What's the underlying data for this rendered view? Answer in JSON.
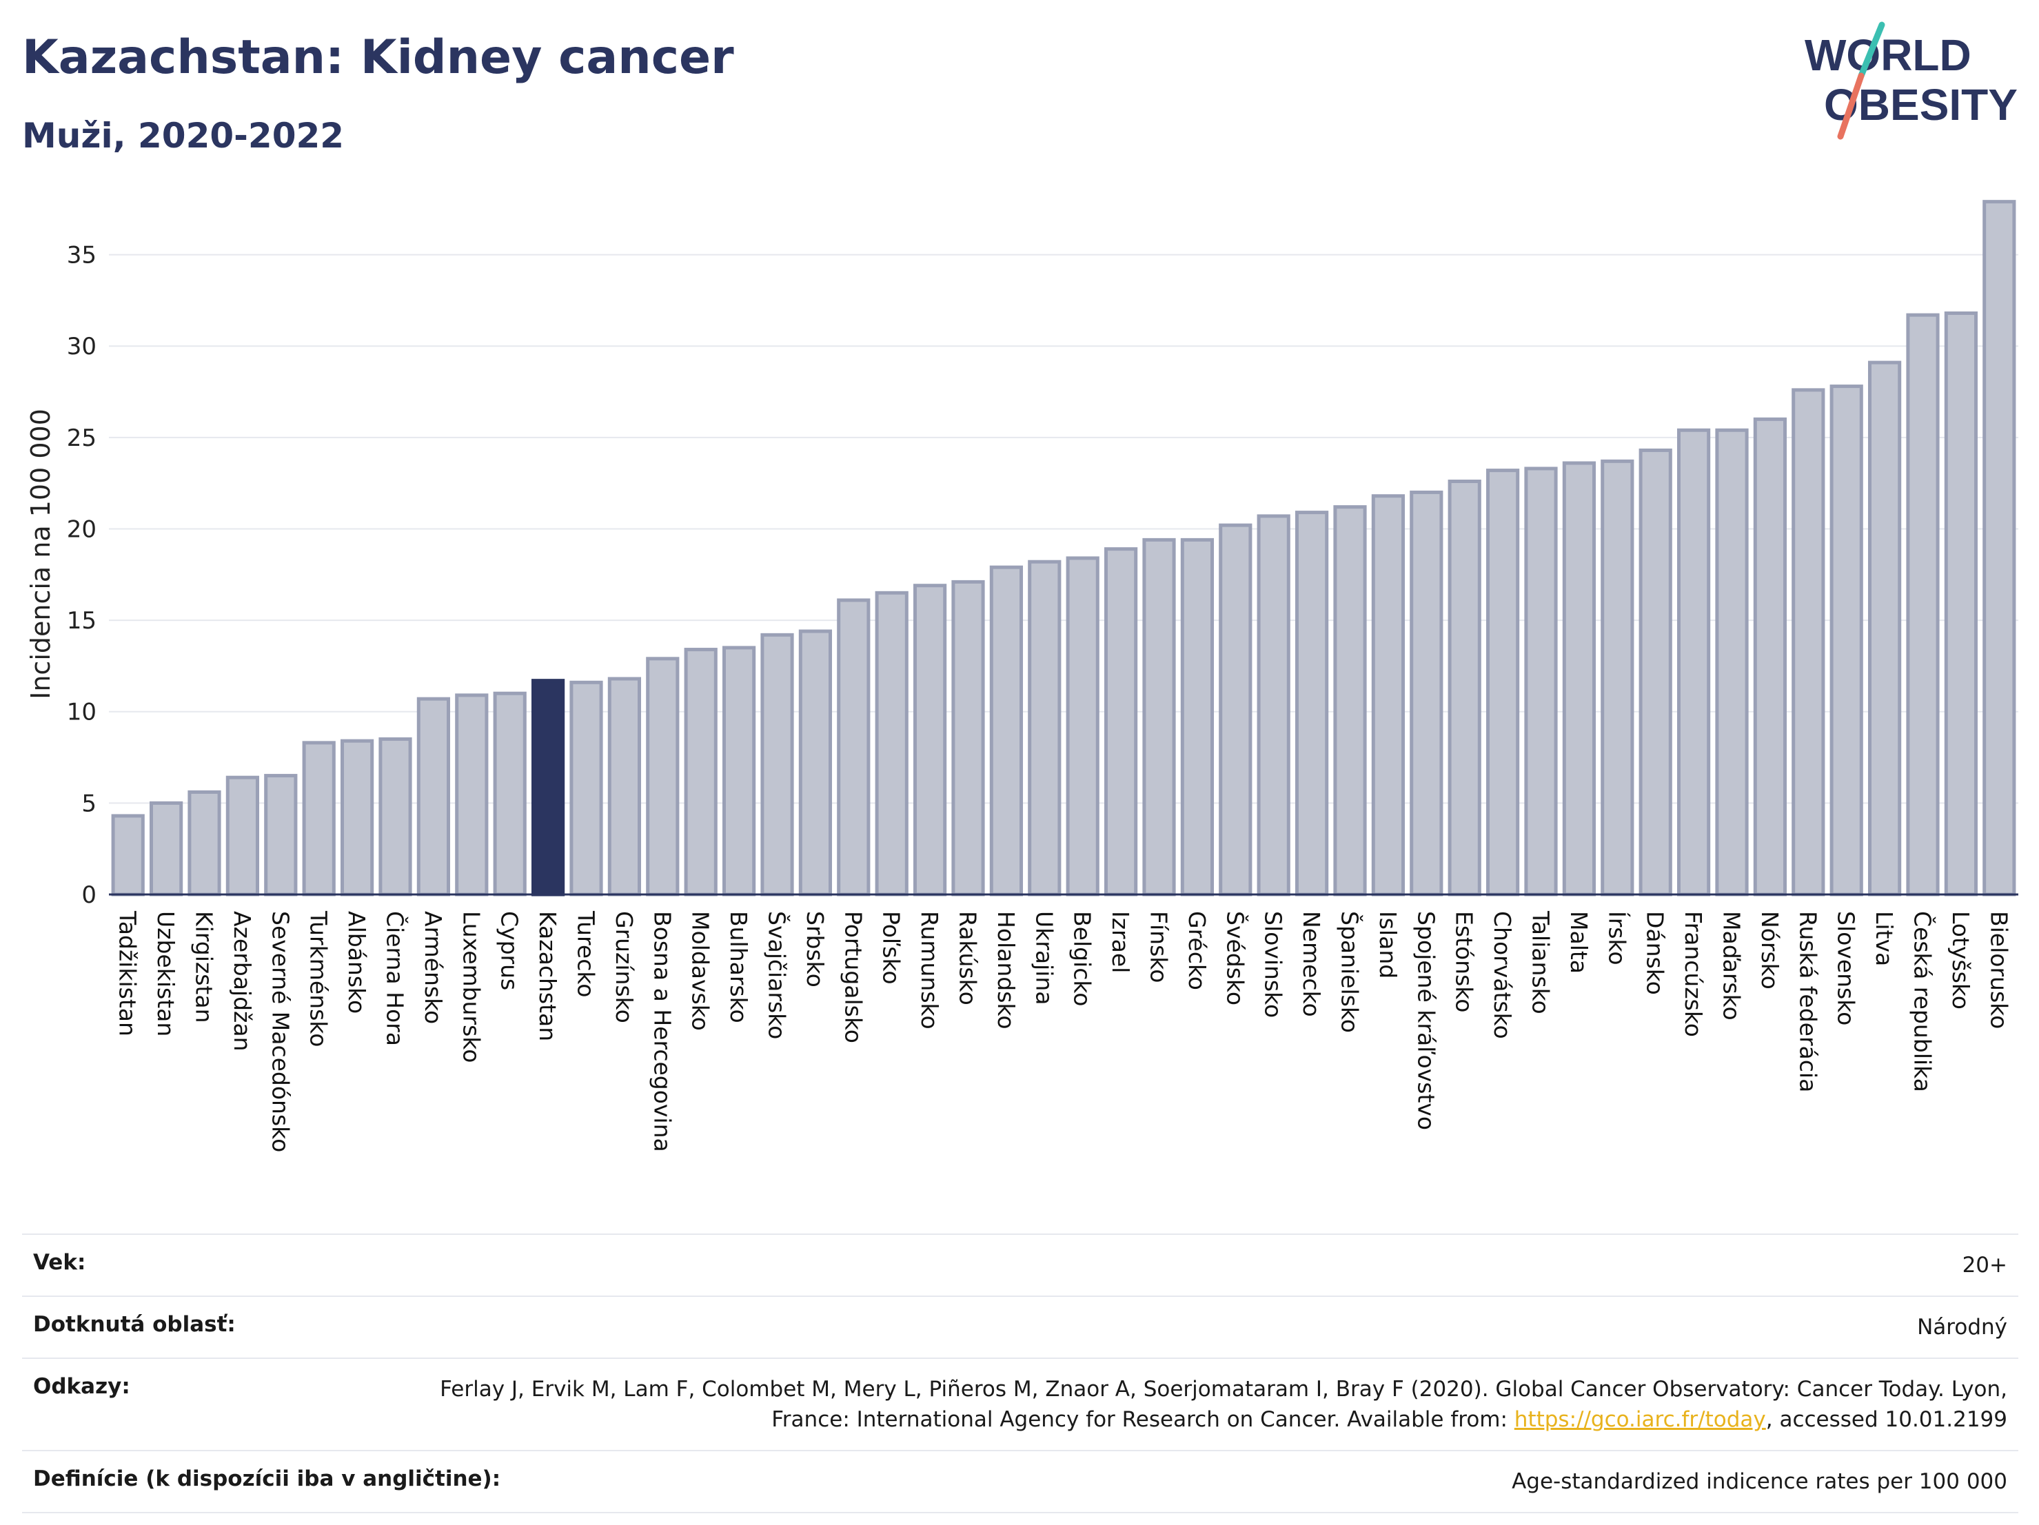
{
  "header": {
    "title": "Kazachstan: Kidney cancer",
    "subtitle": "Muži, 2020-2022"
  },
  "logo": {
    "line1": "WORLD",
    "line2": "OBESITY"
  },
  "colors": {
    "bar": "#c0c4d0",
    "bar_stroke": "#9aa0b6",
    "highlight": "#2b3560",
    "title": "#2b3560",
    "logo_slash_top": "#3bbfb1",
    "logo_slash_bottom": "#e8735f"
  },
  "chart_data": {
    "type": "bar",
    "ylabel": "Incidencia na 100 000",
    "ylim": [
      0,
      38
    ],
    "yticks": [
      0,
      5,
      10,
      15,
      20,
      25,
      30,
      35
    ],
    "grid": true,
    "highlight": "Kazachstan",
    "categories": [
      "Tadžikistan",
      "Uzbekistan",
      "Kirgizstan",
      "Azerbajdžan",
      "Severné Macedónsko",
      "Turkménsko",
      "Albánsko",
      "Čierna Hora",
      "Arménsko",
      "Luxembursko",
      "Cyprus",
      "Kazachstan",
      "Turecko",
      "Gruzínsko",
      "Bosna a Hercegovina",
      "Moldavsko",
      "Bulharsko",
      "Švajčiarsko",
      "Srbsko",
      "Portugalsko",
      "Poľsko",
      "Rumunsko",
      "Rakúsko",
      "Holandsko",
      "Ukrajina",
      "Belgicko",
      "Izrael",
      "Fínsko",
      "Grécko",
      "Švédsko",
      "Slovinsko",
      "Nemecko",
      "Španielsko",
      "Island",
      "Spojené kráľovstvo",
      "Estónsko",
      "Chorvátsko",
      "Taliansko",
      "Malta",
      "Írsko",
      "Dánsko",
      "Francúzsko",
      "Maďarsko",
      "Nórsko",
      "Ruská federácia",
      "Slovensko",
      "Litva",
      "Česká republika",
      "Lotyšsko",
      "Bielorusko"
    ],
    "values": [
      4.3,
      5.0,
      5.6,
      6.4,
      6.5,
      8.3,
      8.4,
      8.5,
      10.7,
      10.9,
      11.0,
      11.7,
      11.6,
      11.8,
      12.9,
      13.4,
      13.5,
      14.2,
      14.4,
      16.1,
      16.5,
      16.9,
      17.1,
      17.9,
      18.2,
      18.4,
      18.9,
      19.4,
      19.4,
      20.2,
      20.7,
      20.9,
      21.2,
      21.8,
      22.0,
      22.6,
      23.2,
      23.3,
      23.6,
      23.7,
      24.3,
      25.4,
      25.4,
      26.0,
      27.6,
      27.8,
      29.1,
      31.7,
      31.8,
      37.9
    ]
  },
  "info": {
    "age_label": "Vek:",
    "age_value": "20+",
    "area_label": "Dotknutá oblasť:",
    "area_value": "Národný",
    "refs_label": "Odkazy:",
    "refs_text_1": "Ferlay J, Ervik M, Lam F, Colombet M, Mery L, Piñeros M, Znaor A, Soerjomataram I, Bray F (2020). Global Cancer Observatory: Cancer Today. Lyon, France: International Agency for Research on Cancer. Available from: ",
    "refs_link": "https://gco.iarc.fr/today",
    "refs_text_2": ", accessed 10.01.2199",
    "def_label": "Definície (k dispozícii iba v angličtine):",
    "def_value": "Age-standardized indicence rates per 100 000"
  }
}
